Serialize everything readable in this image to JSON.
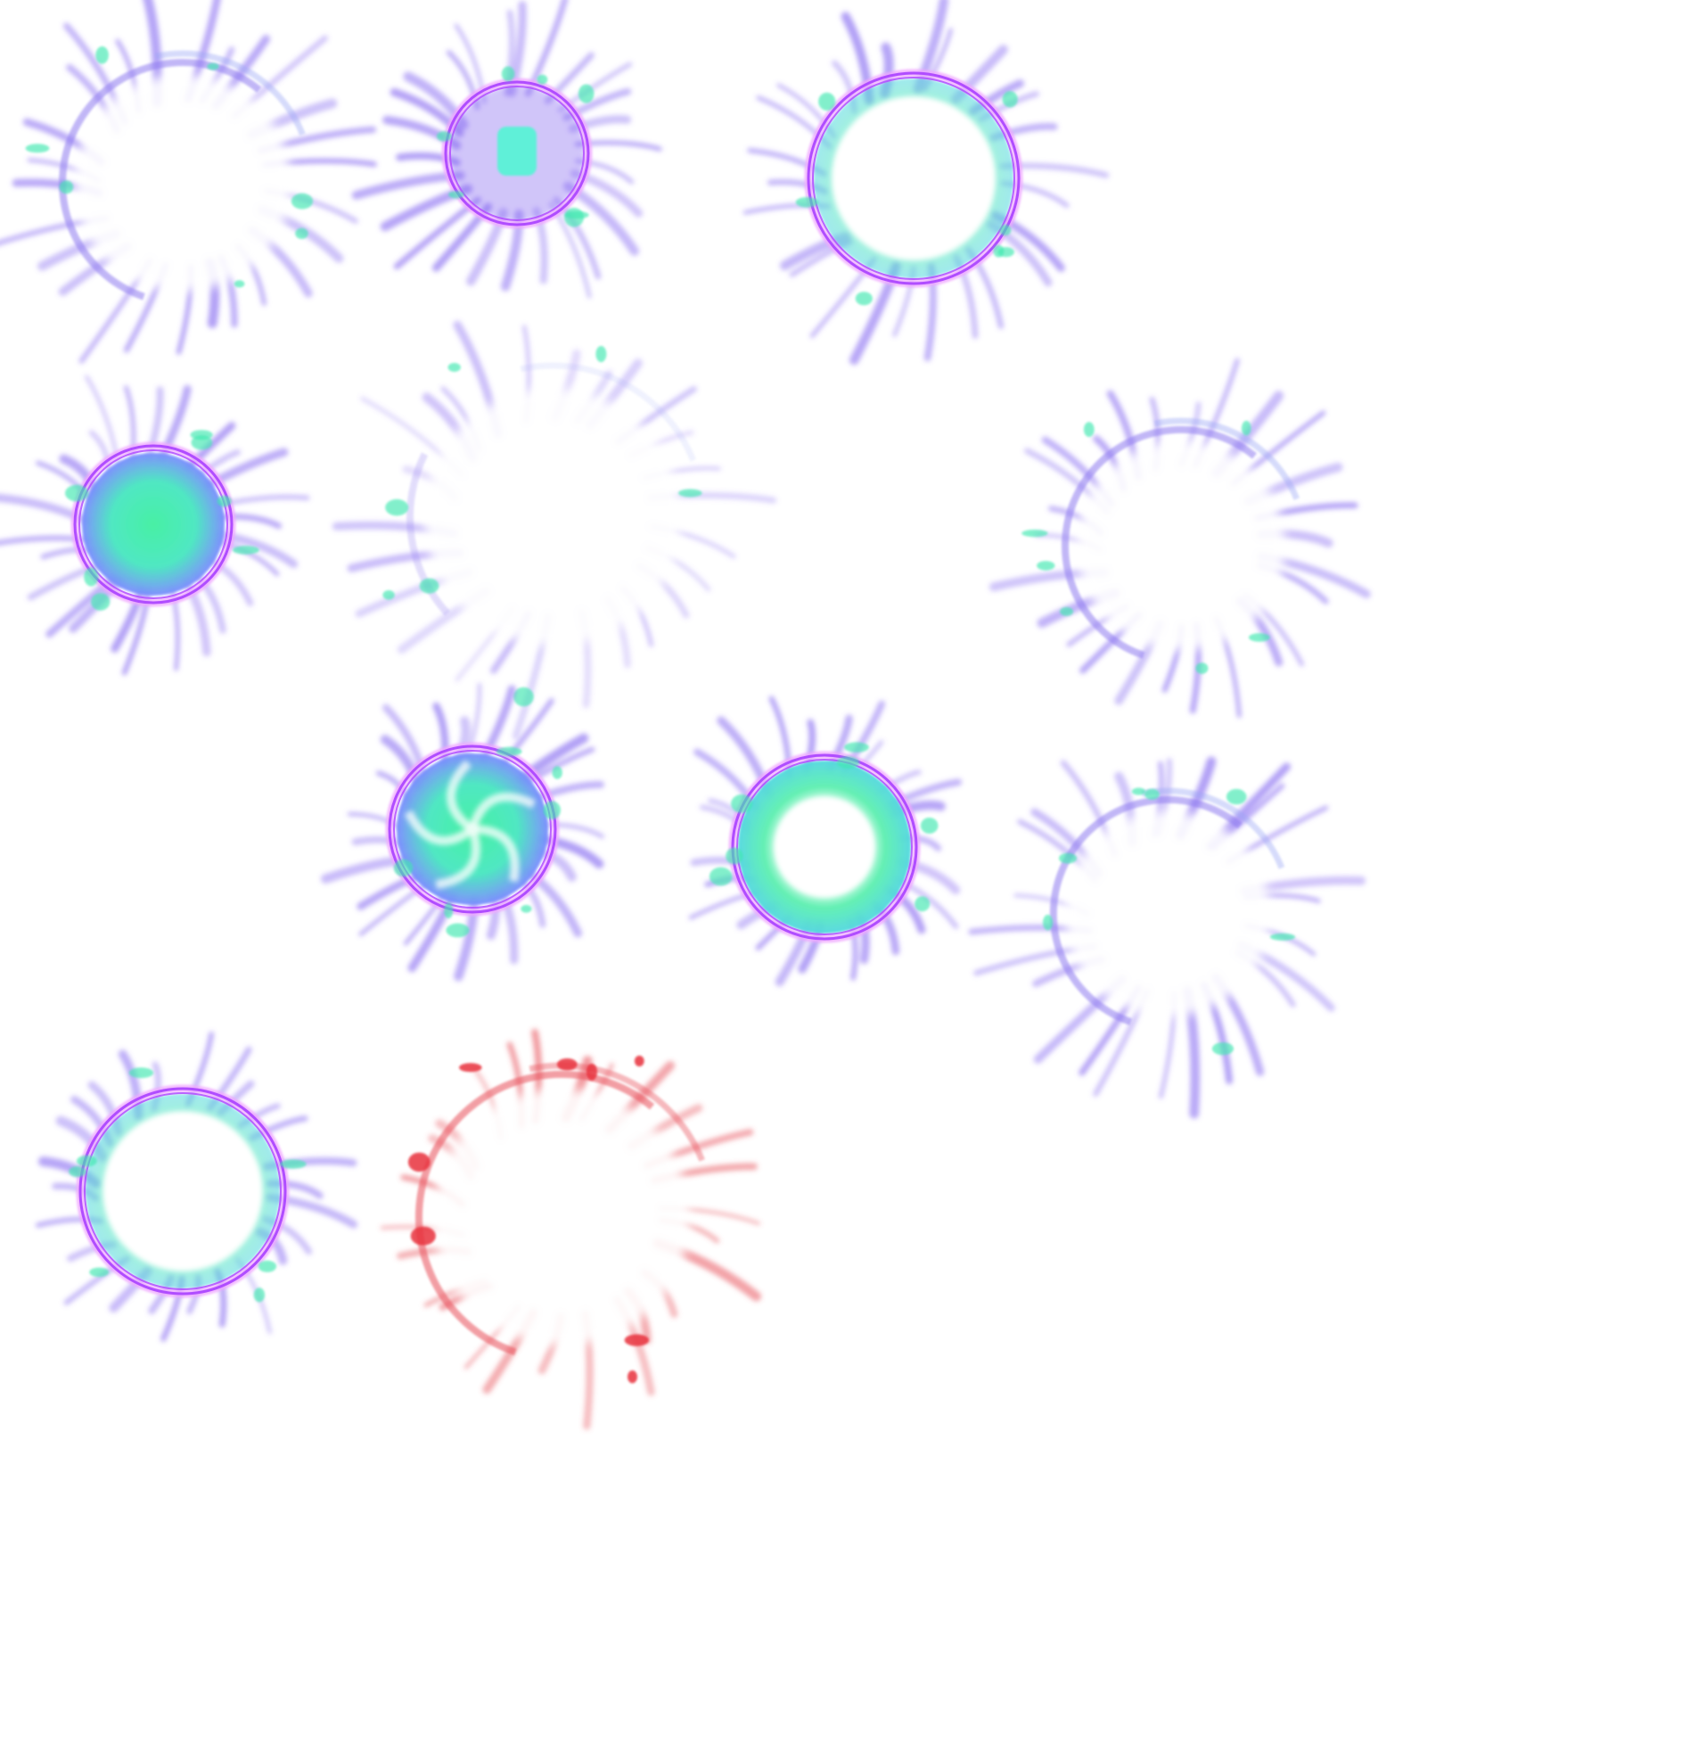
{
  "sprite_sheet": {
    "background": "#ffffff",
    "palette": {
      "ring": "#b04dff",
      "ring_glow": "#f0a8ff",
      "ray": "#7b5cf0",
      "core": "#3fe8b0",
      "core_alt": "#5ef0d8",
      "red_ring": "#e8505a",
      "red_splash": "#e8323c"
    },
    "frames": [
      {
        "name": "frame-01-broken-ring",
        "variant": "broken",
        "tint": "blue"
      },
      {
        "name": "frame-02-small-burst",
        "variant": "small-solid",
        "tint": "blue"
      },
      {
        "name": "frame-03-large-ring",
        "variant": "ring-edges",
        "tint": "blue"
      },
      {
        "name": "frame-04-filled-core",
        "variant": "filled",
        "tint": "blue"
      },
      {
        "name": "frame-05-faint-burst",
        "variant": "faint",
        "tint": "blue"
      },
      {
        "name": "frame-06-broken-ring-right",
        "variant": "broken",
        "tint": "blue"
      },
      {
        "name": "frame-07-swirl-core",
        "variant": "swirl",
        "tint": "blue"
      },
      {
        "name": "frame-08-hollow-core",
        "variant": "hollow",
        "tint": "blue"
      },
      {
        "name": "frame-09-broken-ring-lower",
        "variant": "broken",
        "tint": "blue"
      },
      {
        "name": "frame-10-ring-edges",
        "variant": "ring-edges",
        "tint": "blue"
      },
      {
        "name": "frame-11-red-broken-ring",
        "variant": "broken",
        "tint": "red"
      }
    ]
  }
}
